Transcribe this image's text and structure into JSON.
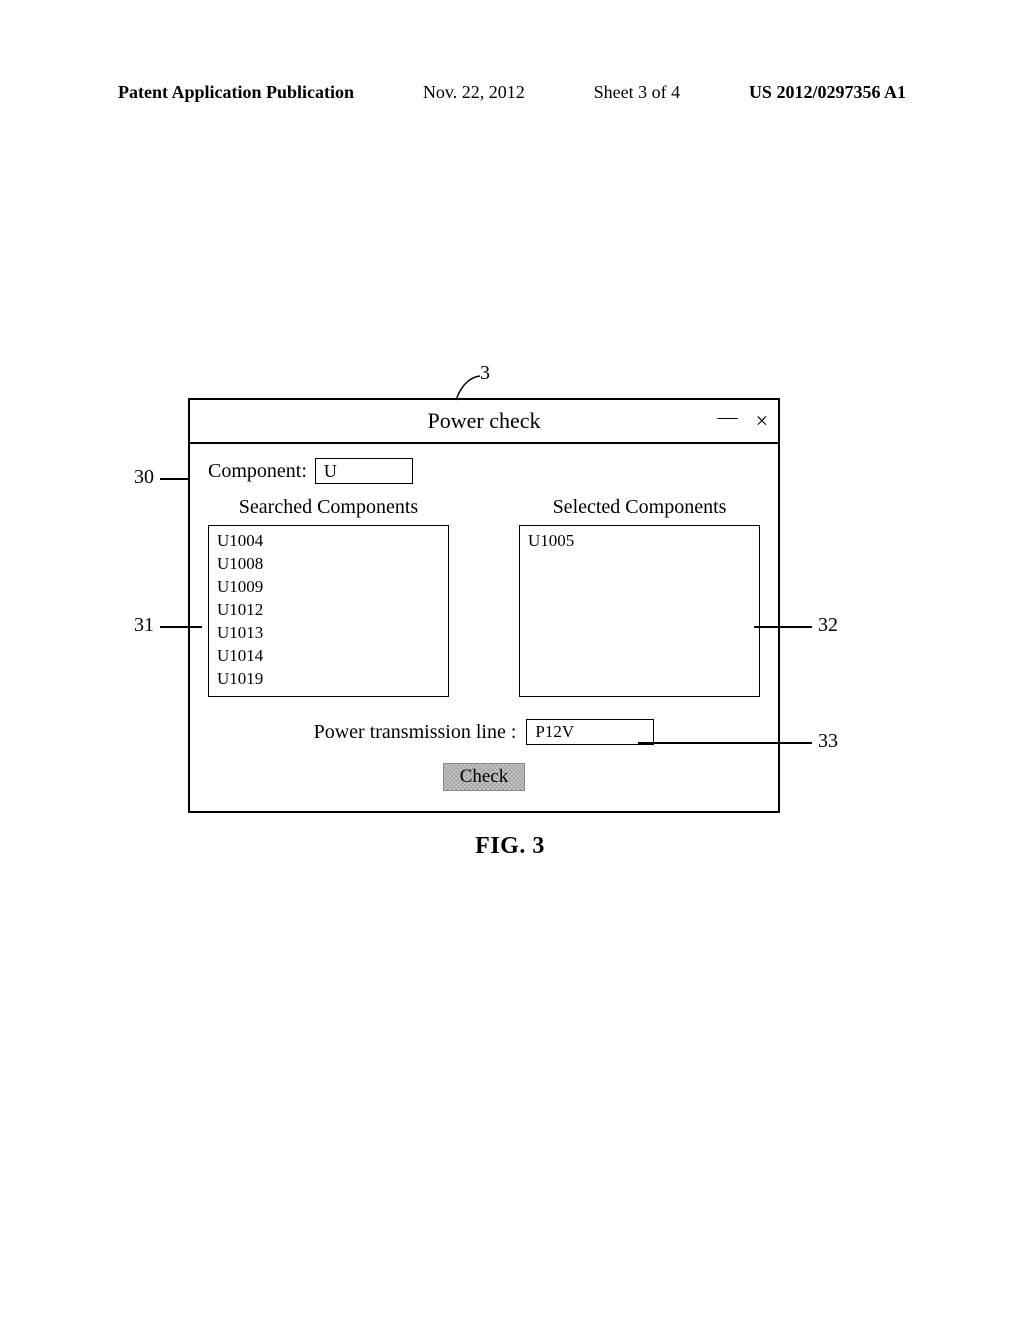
{
  "header": {
    "pub_label": "Patent Application Publication",
    "date": "Nov. 22, 2012",
    "sheet": "Sheet 3 of 4",
    "pubno": "US 2012/0297356 A1"
  },
  "ref": {
    "n3": "3",
    "n30": "30",
    "n31": "31",
    "n32": "32",
    "n33": "33"
  },
  "window": {
    "title": "Power check",
    "min_glyph": "—",
    "close_glyph": "×",
    "component_label": "Component:",
    "component_value": "U",
    "searched_title": "Searched Components",
    "selected_title": "Selected Components",
    "searched_items": [
      "U1004",
      "U1008",
      "U1009",
      "U1012",
      "U1013",
      "U1014",
      "U1019"
    ],
    "selected_items": [
      "U1005"
    ],
    "powerline_label": "Power transmission line :",
    "powerline_value": "P12V",
    "check_label": "Check"
  },
  "caption": "FIG. 3",
  "style": {
    "page_bg": "#ffffff",
    "text_color": "#000000",
    "border_color": "#000000",
    "button_bg": "#c8c8c8",
    "font_family": "Times New Roman",
    "header_fontsize_pt": 13,
    "body_fontsize_pt": 15,
    "caption_fontsize_pt": 18
  }
}
